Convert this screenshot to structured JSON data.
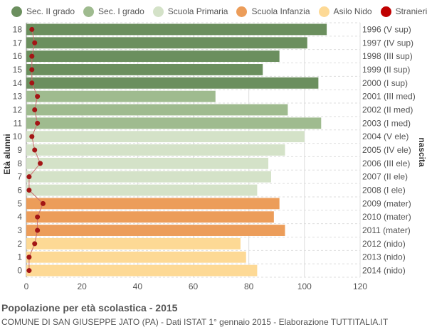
{
  "chart_data": {
    "type": "bar",
    "title": "Popolazione per età scolastica - 2015",
    "subtitle": "COMUNE DI SAN GIUSEPPE JATO (PA) - Dati ISTAT 1° gennaio 2015 - Elaborazione TUTTITALIA.IT",
    "ylabel_left": "Età alunni",
    "ylabel_right": "Anni di nascita",
    "xlim": [
      0,
      120
    ],
    "xticks": [
      "0",
      "20",
      "40",
      "60",
      "80",
      "100",
      "120"
    ],
    "grid": true,
    "legend_position": "top",
    "legend": [
      {
        "name": "Sec. II grado",
        "color": "#6b8f5e"
      },
      {
        "name": "Sec. I grado",
        "color": "#9fbb8f"
      },
      {
        "name": "Scuola Primaria",
        "color": "#d4e2c8"
      },
      {
        "name": "Scuola Infanzia",
        "color": "#ec9d5a"
      },
      {
        "name": "Asilo Nido",
        "color": "#fdd995"
      },
      {
        "name": "Stranieri",
        "color": "#c00000"
      }
    ],
    "rows": [
      {
        "age": "18",
        "year": "1996 (V sup)",
        "value": 108,
        "stranieri": 2,
        "group": 0
      },
      {
        "age": "17",
        "year": "1997 (IV sup)",
        "value": 101,
        "stranieri": 3,
        "group": 0
      },
      {
        "age": "16",
        "year": "1998 (III sup)",
        "value": 91,
        "stranieri": 2,
        "group": 0
      },
      {
        "age": "15",
        "year": "1999 (II sup)",
        "value": 85,
        "stranieri": 2,
        "group": 0
      },
      {
        "age": "14",
        "year": "2000 (I sup)",
        "value": 105,
        "stranieri": 2,
        "group": 0
      },
      {
        "age": "13",
        "year": "2001 (III med)",
        "value": 68,
        "stranieri": 4,
        "group": 1
      },
      {
        "age": "12",
        "year": "2002 (II med)",
        "value": 94,
        "stranieri": 3,
        "group": 1
      },
      {
        "age": "11",
        "year": "2003 (I med)",
        "value": 106,
        "stranieri": 4,
        "group": 1
      },
      {
        "age": "10",
        "year": "2004 (V ele)",
        "value": 100,
        "stranieri": 2,
        "group": 2
      },
      {
        "age": "9",
        "year": "2005 (IV ele)",
        "value": 93,
        "stranieri": 3,
        "group": 2
      },
      {
        "age": "8",
        "year": "2006 (III ele)",
        "value": 87,
        "stranieri": 5,
        "group": 2
      },
      {
        "age": "7",
        "year": "2007 (II ele)",
        "value": 88,
        "stranieri": 1,
        "group": 2
      },
      {
        "age": "6",
        "year": "2008 (I ele)",
        "value": 83,
        "stranieri": 1,
        "group": 2
      },
      {
        "age": "5",
        "year": "2009 (mater)",
        "value": 91,
        "stranieri": 6,
        "group": 3
      },
      {
        "age": "4",
        "year": "2010 (mater)",
        "value": 89,
        "stranieri": 4,
        "group": 3
      },
      {
        "age": "3",
        "year": "2011 (mater)",
        "value": 93,
        "stranieri": 4,
        "group": 3
      },
      {
        "age": "2",
        "year": "2012 (nido)",
        "value": 77,
        "stranieri": 3,
        "group": 4
      },
      {
        "age": "1",
        "year": "2013 (nido)",
        "value": 79,
        "stranieri": 1,
        "group": 4
      },
      {
        "age": "0",
        "year": "2014 (nido)",
        "value": 83,
        "stranieri": 1,
        "group": 4
      }
    ]
  }
}
